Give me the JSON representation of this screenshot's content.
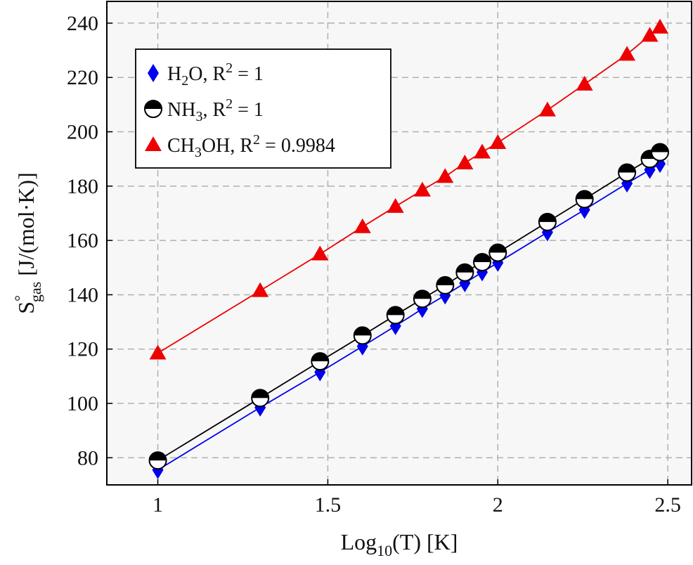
{
  "chart_data": {
    "type": "line",
    "xlabel": "Log10(T) [K]",
    "ylabel": "S°gas [J/(mol·K)]",
    "xlim": [
      0.85,
      2.57
    ],
    "ylim": [
      70,
      248
    ],
    "xticks": [
      1,
      1.5,
      2,
      2.5
    ],
    "xtick_labels": [
      "1",
      "1.5",
      "2",
      "2.5"
    ],
    "yticks": [
      80,
      100,
      120,
      140,
      160,
      180,
      200,
      220,
      240
    ],
    "ytick_labels": [
      "80",
      "100",
      "120",
      "140",
      "160",
      "180",
      "200",
      "220",
      "240"
    ],
    "grid": true,
    "legend_position": "top-left",
    "x": [
      1,
      1.301,
      1.477,
      1.602,
      1.699,
      1.778,
      1.845,
      1.903,
      1.954,
      2,
      2.146,
      2.255,
      2.38,
      2.447,
      2.477
    ],
    "series": [
      {
        "name": "H2O, R2 = 1",
        "color": "#0000ee",
        "marker": "diamond",
        "values": [
          75.5,
          98.5,
          111.5,
          121.0,
          128.5,
          134.8,
          139.8,
          144.3,
          148.3,
          151.8,
          163.0,
          171.3,
          181.0,
          186.0,
          188.2
        ]
      },
      {
        "name": "NH3, R2 = 1",
        "color": "#000000",
        "marker": "half-filled-circle",
        "values": [
          79.0,
          102.0,
          115.5,
          125.0,
          132.5,
          138.5,
          143.5,
          148.2,
          152.0,
          155.5,
          166.8,
          175.2,
          185.0,
          190.0,
          192.5
        ]
      },
      {
        "name": "CH3OH, R2 = 0.9984",
        "color": "#ee0000",
        "marker": "triangle",
        "values": [
          118.5,
          141.5,
          155.0,
          165.0,
          172.5,
          178.5,
          183.5,
          188.5,
          192.5,
          196.0,
          208.0,
          217.5,
          228.5,
          235.5,
          238.5
        ]
      }
    ]
  }
}
